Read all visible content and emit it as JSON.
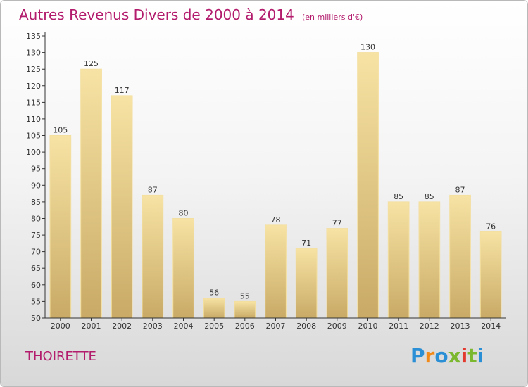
{
  "header": {
    "title": "Autres Revenus Divers de 2000 à 2014",
    "unit": "(en milliers d'€)"
  },
  "place": "THOIRETTE",
  "logo": {
    "text": "Proxiti",
    "letters": [
      "P",
      "r",
      "o",
      "x",
      "i",
      "t",
      "i"
    ],
    "colors": [
      "#2b8fd6",
      "#f28a1a",
      "#2b8fd6",
      "#7cb82f",
      "#e33a2f",
      "#7cb82f",
      "#2b8fd6"
    ]
  },
  "colors": {
    "title": "#b31b6c",
    "bar_light": "#f7e3a4",
    "bar_dark": "#c9aa66",
    "axis": "#333333"
  },
  "chart_data": {
    "type": "bar",
    "title": "Autres Revenus Divers de 2000 à 2014",
    "subtitle": "(en milliers d'€)",
    "xlabel": "",
    "ylabel": "",
    "ylim": [
      50,
      135
    ],
    "ytick_step": 5,
    "grid": false,
    "categories": [
      "2000",
      "2001",
      "2002",
      "2003",
      "2004",
      "2005",
      "2006",
      "2007",
      "2008",
      "2009",
      "2010",
      "2011",
      "2012",
      "2013",
      "2014"
    ],
    "values": [
      105,
      125,
      117,
      87,
      80,
      56,
      55,
      78,
      71,
      77,
      130,
      85,
      85,
      87,
      76
    ]
  }
}
